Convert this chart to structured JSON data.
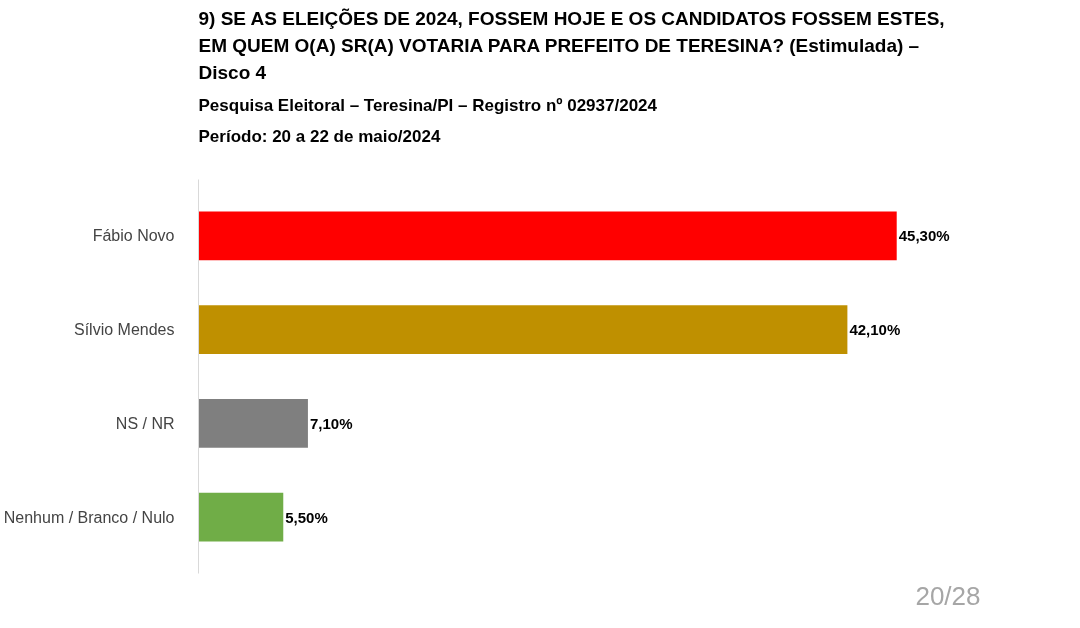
{
  "chart_data": {
    "type": "bar",
    "orientation": "horizontal",
    "title": "9) SE AS ELEIÇÕES DE 2024, FOSSEM HOJE E OS CANDIDATOS FOSSEM ESTES, EM QUEM O(A) SR(A) VOTARIA PARA PREFEITO DE TERESINA? (Estimulada) – Disco 4",
    "categories": [
      "Fábio Novo",
      "Sílvio Mendes",
      "NS / NR",
      "Nenhum / Branco / Nulo"
    ],
    "values": [
      45.3,
      42.1,
      7.1,
      5.5
    ],
    "colors": [
      "#ff0000",
      "#bf9000",
      "#7f7f7f",
      "#70ad47"
    ],
    "value_labels": [
      "45,30%",
      "42,10%",
      "7,10%",
      "5,50%"
    ],
    "annotations": [
      "Pesquisa Eleitoral – Teresina/PI – Registro nº 02937/2024",
      "Período: 20 a 22 de maio/2024",
      "20/28"
    ],
    "grid": false
  }
}
